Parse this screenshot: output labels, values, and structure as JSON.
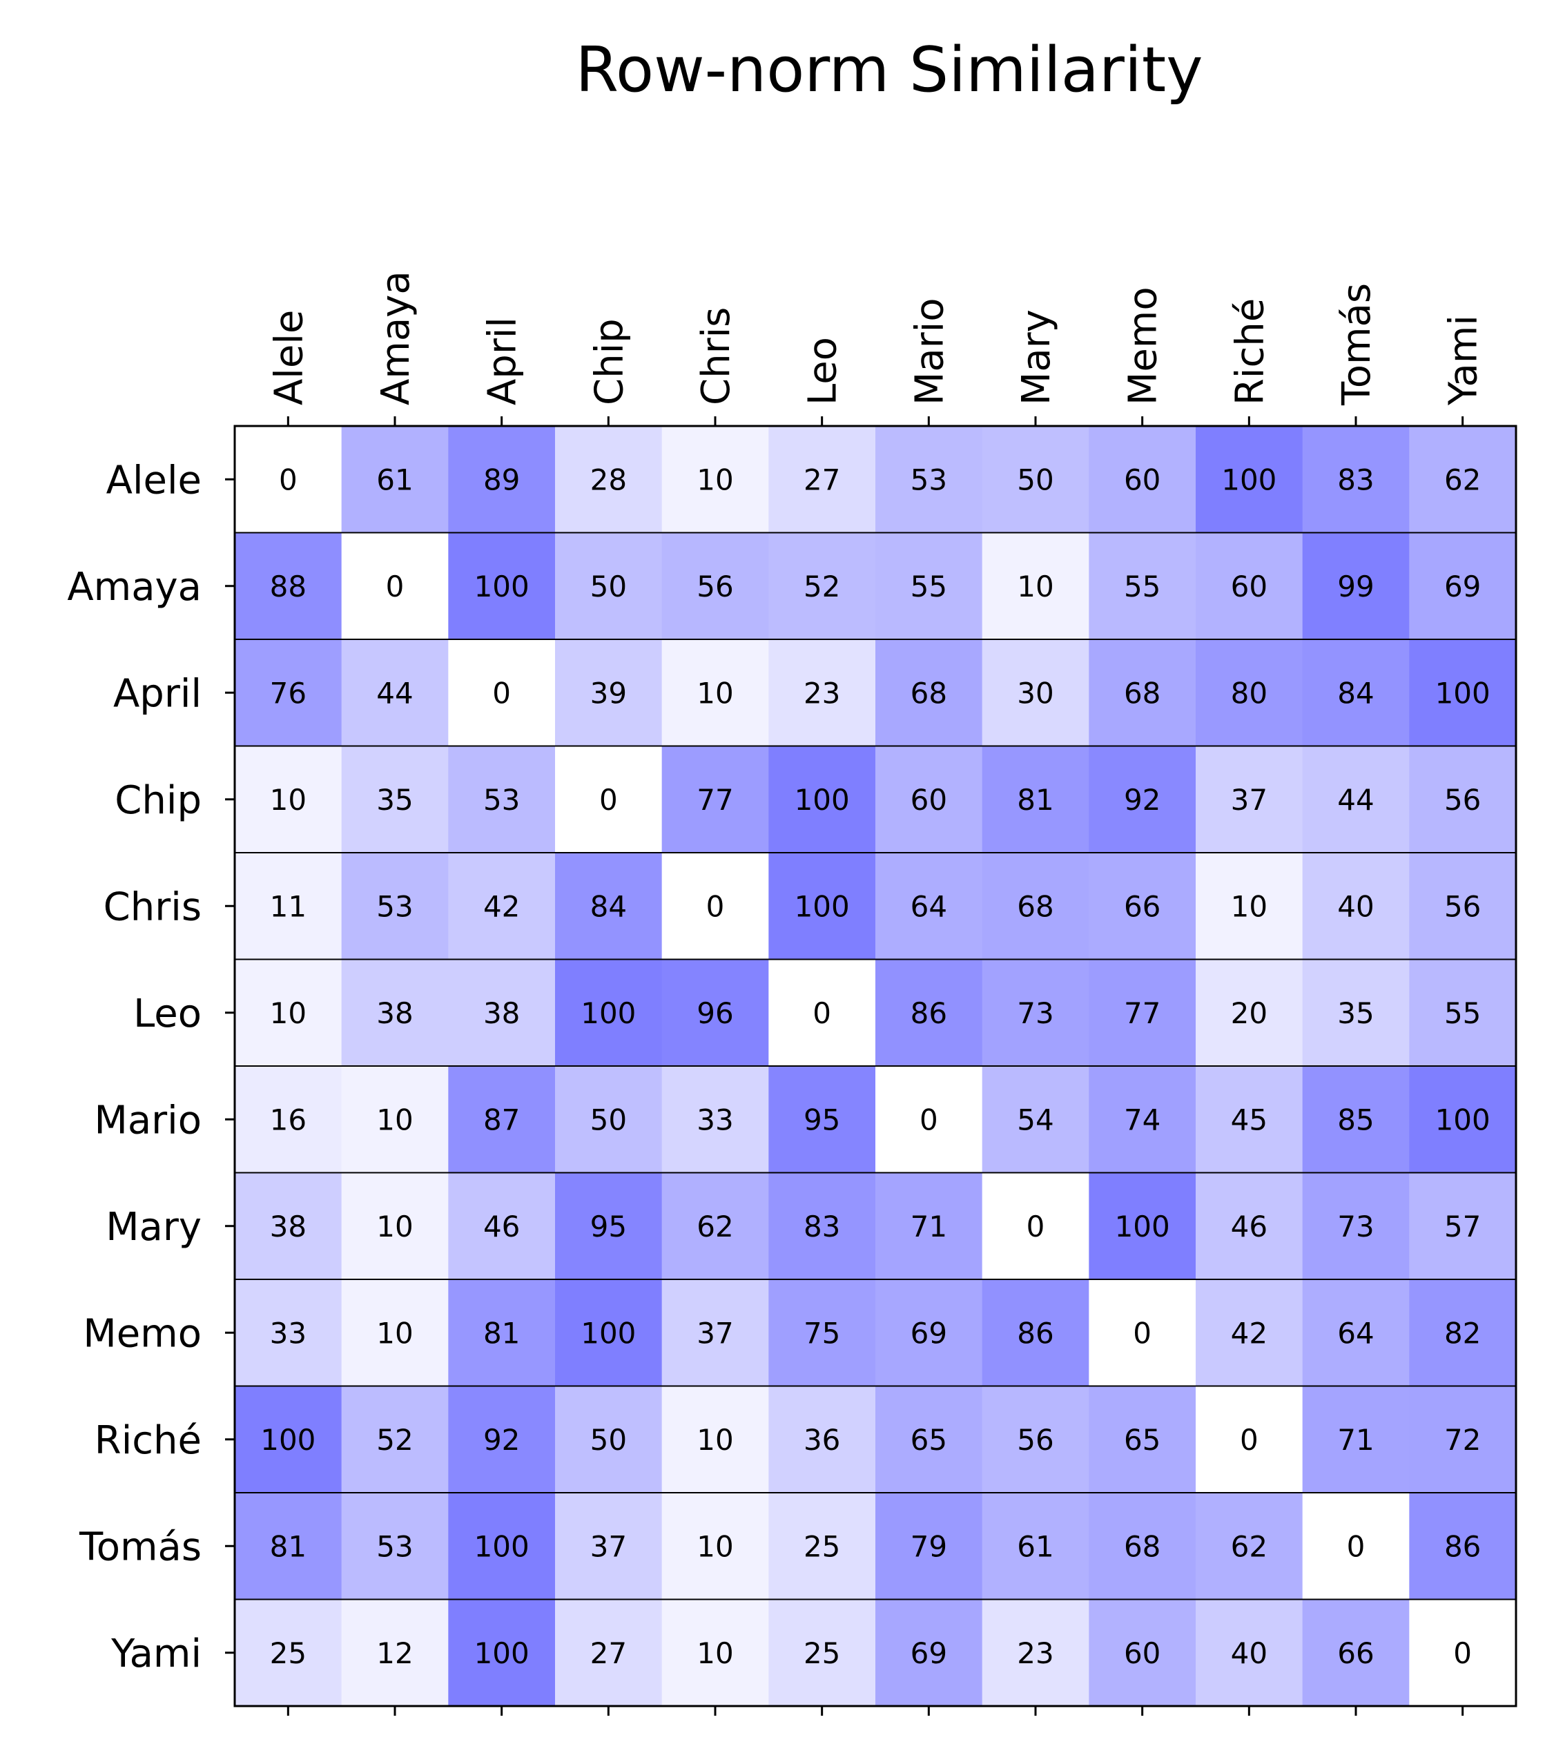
{
  "chart_data": {
    "type": "heatmap",
    "title": "Row-norm Similarity",
    "x_labels": [
      "Alele",
      "Amaya",
      "April",
      "Chip",
      "Chris",
      "Leo",
      "Mario",
      "Mary",
      "Memo",
      "Riché",
      "Tomás",
      "Yami"
    ],
    "y_labels": [
      "Alele",
      "Amaya",
      "April",
      "Chip",
      "Chris",
      "Leo",
      "Mario",
      "Mary",
      "Memo",
      "Riché",
      "Tomás",
      "Yami"
    ],
    "values": [
      [
        0,
        61,
        89,
        28,
        10,
        27,
        53,
        50,
        60,
        100,
        83,
        62
      ],
      [
        88,
        0,
        100,
        50,
        56,
        52,
        55,
        10,
        55,
        60,
        99,
        69
      ],
      [
        76,
        44,
        0,
        39,
        10,
        23,
        68,
        30,
        68,
        80,
        84,
        100
      ],
      [
        10,
        35,
        53,
        0,
        77,
        100,
        60,
        81,
        92,
        37,
        44,
        56
      ],
      [
        11,
        53,
        42,
        84,
        0,
        100,
        64,
        68,
        66,
        10,
        40,
        56
      ],
      [
        10,
        38,
        38,
        100,
        96,
        0,
        86,
        73,
        77,
        20,
        35,
        55
      ],
      [
        16,
        10,
        87,
        50,
        33,
        95,
        0,
        54,
        74,
        45,
        85,
        100
      ],
      [
        38,
        10,
        46,
        95,
        62,
        83,
        71,
        0,
        100,
        46,
        73,
        57
      ],
      [
        33,
        10,
        81,
        100,
        37,
        75,
        69,
        86,
        0,
        42,
        64,
        82
      ],
      [
        100,
        52,
        92,
        50,
        10,
        36,
        65,
        56,
        65,
        0,
        71,
        72
      ],
      [
        81,
        53,
        100,
        37,
        10,
        25,
        79,
        61,
        68,
        62,
        0,
        86
      ],
      [
        25,
        12,
        100,
        27,
        10,
        25,
        69,
        23,
        60,
        40,
        66,
        0
      ]
    ],
    "value_range": [
      0,
      100
    ],
    "colormap": {
      "low": "#ffffff",
      "high": "#7f7fff"
    },
    "x_tick_position": "top",
    "row_separators": true,
    "grid": false,
    "legend": "none"
  }
}
